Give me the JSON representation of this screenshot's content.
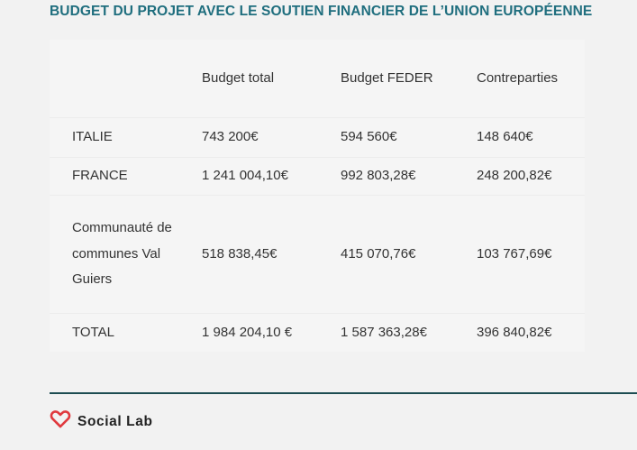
{
  "title": "BUDGET DU PROJET AVEC LE SOUTIEN FINANCIER DE L’UNION EUROPÉENNE",
  "table": {
    "headers": [
      "",
      "Budget total",
      "Budget FEDER",
      "Contreparties"
    ],
    "rows": [
      {
        "name": "ITALIE",
        "total": "743 200€",
        "feder": "594 560€",
        "contreparties": "148 640€"
      },
      {
        "name": "FRANCE",
        "total": "1 241 004,10€",
        "feder": "992 803,28€",
        "contreparties": "248 200,82€"
      },
      {
        "name": "Communauté de communes Val Guiers",
        "total": "518 838,45€",
        "feder": "415 070,76€",
        "contreparties": "103 767,69€"
      },
      {
        "name": "TOTAL",
        "total": "1 984 204,10 €",
        "feder": "1 587 363,28€",
        "contreparties": "396 840,82€"
      }
    ]
  },
  "footer": {
    "brand_name": "Social Lab",
    "logo_icon": "heart-icon",
    "accent_color": "#e0393e"
  }
}
